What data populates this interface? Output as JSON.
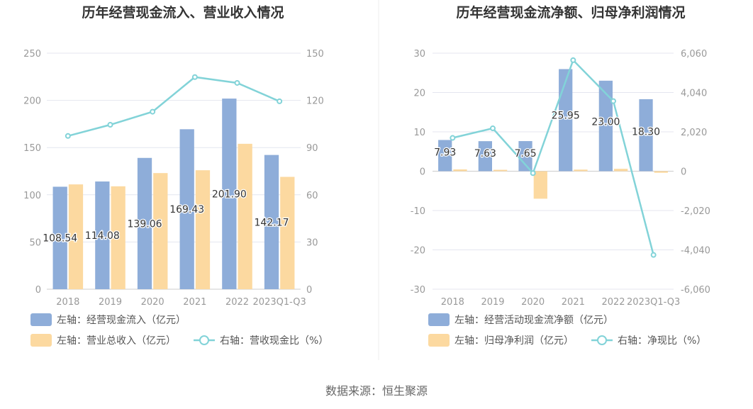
{
  "colors": {
    "bar_primary": "#8eadd9",
    "bar_secondary": "#fcd9a0",
    "line": "#82d3d8",
    "grid": "#e4e6ef",
    "axis_text": "#999999",
    "title": "#333333",
    "value_label": "#333333",
    "legend_text": "#555555"
  },
  "source": "数据来源：恒生聚源",
  "chart_data": [
    {
      "type": "bar",
      "title": "历年经营现金流入、营业收入情况",
      "categories": [
        "2018",
        "2019",
        "2020",
        "2021",
        "2022",
        "2023Q1-Q3"
      ],
      "series": [
        {
          "name": "左轴：经营现金流入（亿元）",
          "axis": "left",
          "kind": "bar",
          "values": [
            108.54,
            114.08,
            139.06,
            169.43,
            201.9,
            142.17
          ],
          "labels": [
            "108.54",
            "114.08",
            "139.06",
            "169.43",
            "201.90",
            "142.17"
          ]
        },
        {
          "name": "左轴：营业总收入（亿元）",
          "axis": "left",
          "kind": "bar",
          "values": [
            111,
            109,
            123,
            126,
            154,
            119
          ]
        },
        {
          "name": "右轴：营收现金比（%）",
          "axis": "right",
          "kind": "line",
          "values": [
            97.4,
            104.5,
            112.8,
            134.8,
            131.1,
            119.4
          ]
        }
      ],
      "left_axis": {
        "min": 0,
        "max": 250,
        "ticks": [
          "0",
          "50",
          "100",
          "150",
          "200",
          "250"
        ]
      },
      "right_axis": {
        "min": 0,
        "max": 150,
        "ticks": [
          "0",
          "30",
          "60",
          "90",
          "120",
          "150"
        ]
      }
    },
    {
      "type": "bar",
      "title": "历年经营现金流净额、归母净利润情况",
      "categories": [
        "2018",
        "2019",
        "2020",
        "2021",
        "2022",
        "2023Q1-Q3"
      ],
      "series": [
        {
          "name": "左轴：经营活动现金流净额（亿元）",
          "axis": "left",
          "kind": "bar",
          "values": [
            7.93,
            7.63,
            7.65,
            25.95,
            23.0,
            18.3
          ],
          "labels": [
            "7.93",
            "7.63",
            "7.65",
            "25.95",
            "23.00",
            "18.30"
          ]
        },
        {
          "name": "左轴：归母净利润（亿元）",
          "axis": "left",
          "kind": "bar",
          "values": [
            0.45,
            0.35,
            -7.0,
            0.4,
            0.6,
            -0.4
          ]
        },
        {
          "name": "右轴：净现比（%）",
          "axis": "right",
          "kind": "line",
          "values": [
            1710,
            2200,
            -100,
            5700,
            3600,
            -4300
          ]
        }
      ],
      "left_axis": {
        "min": -30,
        "max": 30,
        "ticks": [
          "-30",
          "-20",
          "-10",
          "0",
          "10",
          "20",
          "30"
        ]
      },
      "right_axis": {
        "min": -6060,
        "max": 6060,
        "ticks": [
          "-6,060",
          "-4,040",
          "-2,020",
          "0",
          "2,020",
          "4,040",
          "6,060"
        ]
      }
    }
  ]
}
